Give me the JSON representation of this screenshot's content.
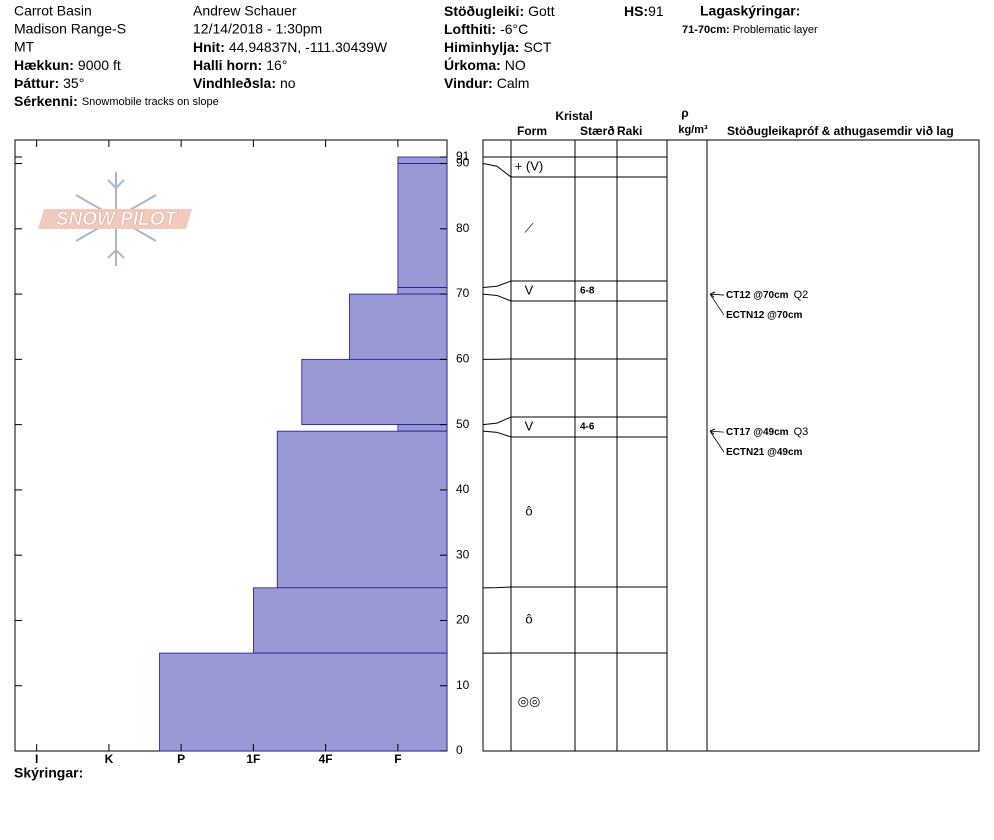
{
  "header": {
    "site": "Carrot Basin",
    "range": "Madison Range-S",
    "state": "MT",
    "observer": "Andrew Schauer",
    "date": "12/14/2018 - 1:30pm",
    "elevation": {
      "label": "Hækkun:",
      "value": "9000 ft"
    },
    "aspect": {
      "label": "Þáttur:",
      "value": "35°"
    },
    "features": {
      "label": "Sérkenni:",
      "value": "Snowmobile tracks on slope"
    },
    "coordinates": {
      "label": "Hnit:",
      "value": "44.94837N, -111.30439W"
    },
    "slope": {
      "label": "Halli horn:",
      "value": "16°"
    },
    "wind_loading": {
      "label": "Vindhleðsla:",
      "value": "no"
    },
    "stability": {
      "label": "Stöðugleiki:",
      "value": "Gott"
    },
    "air_temp": {
      "label": "Lofthiti:",
      "value": "-6°C"
    },
    "sky": {
      "label": "Himinhylja:",
      "value": "SCT"
    },
    "precip": {
      "label": "Úrkoma:",
      "value": "NO"
    },
    "wind": {
      "label": "Vindur:",
      "value": "Calm"
    },
    "hs": {
      "label": "HS:",
      "value": 91
    },
    "layer_notes": {
      "title": "Lagaskýringar:",
      "range": "71-70cm:",
      "note": "Problematic layer"
    }
  },
  "chart_data": {
    "type": "snow-profile",
    "logo": "SNOW PILOT",
    "color": "#9999d6",
    "ylim": [
      0,
      91
    ],
    "yticks": [
      0,
      10,
      20,
      30,
      40,
      50,
      60,
      70,
      80,
      90,
      91
    ],
    "xlim": [
      6.3,
      0.32
    ],
    "xticks": [
      {
        "value": 6,
        "label": "I"
      },
      {
        "value": 5,
        "label": "K"
      },
      {
        "value": 4,
        "label": "P"
      },
      {
        "value": 3,
        "label": "1F"
      },
      {
        "value": 2,
        "label": "4F"
      },
      {
        "value": 1,
        "label": "F"
      }
    ],
    "layers": [
      {
        "top": 91,
        "bottom": 90,
        "hardness": 1,
        "form": "+ (V)"
      },
      {
        "top": 90,
        "bottom": 71,
        "hardness": 1,
        "form": "⟋"
      },
      {
        "top": 71,
        "bottom": 70,
        "hardness": 1,
        "form": "V",
        "size": "6-8"
      },
      {
        "top": 70,
        "bottom": 60,
        "hardness": 1.67
      },
      {
        "top": 60,
        "bottom": 50,
        "hardness": 2.33
      },
      {
        "top": 50,
        "bottom": 49,
        "hardness": 1,
        "form": "V",
        "size": "4-6"
      },
      {
        "top": 49,
        "bottom": 25,
        "hardness": 2.67,
        "form": "ô"
      },
      {
        "top": 25,
        "bottom": 15,
        "hardness": 3,
        "form": "ô"
      },
      {
        "top": 15,
        "bottom": 0,
        "hardness": 4.3,
        "form": "◎◎"
      }
    ]
  },
  "table_headers": {
    "crystal": "Kristal",
    "form": "Form",
    "size": "Stærð",
    "moisture": "Raki",
    "rho": "ρ",
    "density_unit": "kg/m³",
    "tests": "Stöðugleikapróf & athugasemdir við lag"
  },
  "tests": [
    {
      "label": "CT12 @70cm",
      "quality": "Q2",
      "depth": 70
    },
    {
      "label": "ECTN12 @70cm",
      "depth": 70
    },
    {
      "label": "CT17 @49cm",
      "quality": "Q3",
      "depth": 49
    },
    {
      "label": "ECTN21 @49cm",
      "depth": 49
    }
  ],
  "footer": {
    "legend": "Skýringar:"
  }
}
